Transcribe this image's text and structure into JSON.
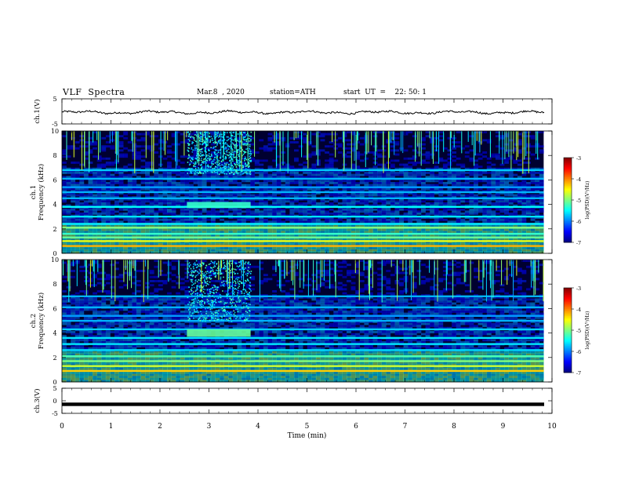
{
  "header": {
    "title": "VLF  Spectra",
    "date": "Mar.8  , 2020",
    "station": "station=ATH",
    "start": "start  UT  =    22: 50: 1"
  },
  "colorbar": {
    "label": "log(PSD)(V²/Hz)",
    "ticks": [
      "-3",
      "-4",
      "-5",
      "-6",
      "-7"
    ],
    "range": [
      -7,
      -3
    ]
  },
  "colors": {
    "background_spectrum": "#000030",
    "axis": "#000000",
    "waveform": "#000000"
  },
  "chart_data": [
    {
      "type": "line",
      "name": "ch1-waveform",
      "ylabel": "ch.1(V)",
      "ylim": [
        -5,
        5
      ],
      "yticks": [
        "5",
        "-5"
      ],
      "xlim": [
        0,
        10
      ],
      "description_values": {
        "mean": -0.4,
        "amplitude": 0.6
      }
    },
    {
      "type": "heatmap",
      "name": "ch1-spectrogram",
      "ylabel": "ch.1\nFrequency  (kHz)",
      "ylim": [
        0,
        10
      ],
      "yticks": [
        "10",
        "8",
        "6",
        "4",
        "2",
        "0"
      ],
      "xlim": [
        0,
        9.83
      ],
      "bands": [
        {
          "f": 0.6,
          "level": -4.2
        },
        {
          "f": 1.0,
          "level": -4.6
        },
        {
          "f": 1.3,
          "level": -5.1
        },
        {
          "f": 1.6,
          "level": -5.3
        },
        {
          "f": 2.1,
          "level": -5.0
        },
        {
          "f": 2.4,
          "level": -5.6
        },
        {
          "f": 3.0,
          "level": -5.6
        },
        {
          "f": 3.8,
          "level": -5.5
        },
        {
          "f": 4.5,
          "level": -5.8
        },
        {
          "f": 5.0,
          "level": -5.8
        },
        {
          "f": 5.4,
          "level": -5.9
        },
        {
          "f": 6.1,
          "level": -5.8
        },
        {
          "f": 6.8,
          "level": -5.7
        }
      ],
      "emission": {
        "t_start": 2.55,
        "t_end": 3.85,
        "f_low": 3.7,
        "f_high": 4.2,
        "level": -5.3
      },
      "hiss": {
        "t_start": 2.55,
        "t_end": 3.85,
        "f_low": 6.5,
        "f_high": 10,
        "level": -5.7
      }
    },
    {
      "type": "heatmap",
      "name": "ch2-spectrogram",
      "ylabel": "ch.2\nFrequency  (kHz)",
      "ylim": [
        0,
        10
      ],
      "yticks": [
        "10",
        "8",
        "6",
        "4",
        "2",
        "0"
      ],
      "xlim": [
        0,
        9.83
      ],
      "bands": [
        {
          "f": 0.9,
          "level": -4.3
        },
        {
          "f": 1.3,
          "level": -4.7
        },
        {
          "f": 1.7,
          "level": -5.0
        },
        {
          "f": 2.1,
          "level": -5.2
        },
        {
          "f": 2.6,
          "level": -5.6
        },
        {
          "f": 3.1,
          "level": -5.6
        },
        {
          "f": 3.6,
          "level": -5.6
        },
        {
          "f": 4.3,
          "level": -5.7
        },
        {
          "f": 5.0,
          "level": -5.8
        },
        {
          "f": 5.4,
          "level": -5.9
        },
        {
          "f": 6.1,
          "level": -5.8
        },
        {
          "f": 7.0,
          "level": -5.8
        }
      ],
      "emission": {
        "t_start": 2.55,
        "t_end": 3.85,
        "f_low": 3.7,
        "f_high": 4.3,
        "level": -5.1
      },
      "hiss": {
        "t_start": 2.55,
        "t_end": 3.85,
        "f_low": 5.0,
        "f_high": 10,
        "level": -5.7
      }
    },
    {
      "type": "line",
      "name": "ch3-waveform",
      "ylabel": "ch.3(V)",
      "ylim": [
        -5,
        5
      ],
      "yticks": [
        "5",
        "0",
        "-5"
      ],
      "xlim": [
        0,
        10
      ],
      "description_values": {
        "mean": -1.4,
        "amplitude": 0.05
      }
    }
  ],
  "xaxis": {
    "label": "Time  (min)",
    "ticks": [
      "0",
      "1",
      "2",
      "3",
      "4",
      "5",
      "6",
      "7",
      "8",
      "9",
      "10"
    ],
    "range": [
      0,
      10
    ]
  }
}
